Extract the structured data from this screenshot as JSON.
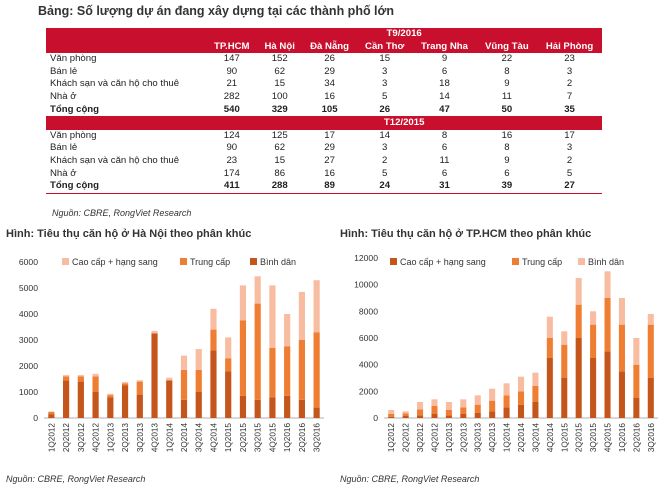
{
  "title": "Bảng: Số lượng dự án đang xây dựng tại các thành phố lớn",
  "table": {
    "columns": [
      "TP.HCM",
      "Hà Nội",
      "Đà Nẵng",
      "Cần Thơ",
      "Trang Nha",
      "Vũng Tàu",
      "Hải Phòng"
    ],
    "sections": [
      {
        "label": "T9/2016",
        "rows": [
          {
            "label": "Văn phòng",
            "values": [
              "147",
              "152",
              "26",
              "15",
              "9",
              "22",
              "23"
            ]
          },
          {
            "label": "Bán lẻ",
            "values": [
              "90",
              "62",
              "29",
              "3",
              "6",
              "8",
              "3"
            ]
          },
          {
            "label": "Khách sạn và căn hộ cho thuê",
            "values": [
              "21",
              "15",
              "34",
              "3",
              "18",
              "9",
              "2"
            ]
          },
          {
            "label": "Nhà ở",
            "values": [
              "282",
              "100",
              "16",
              "5",
              "14",
              "11",
              "7"
            ]
          }
        ],
        "total": {
          "label": "Tổng cộng",
          "values": [
            "540",
            "329",
            "105",
            "26",
            "47",
            "50",
            "35"
          ]
        }
      },
      {
        "label": "T12/2015",
        "rows": [
          {
            "label": "Văn phòng",
            "values": [
              "124",
              "125",
              "17",
              "14",
              "8",
              "16",
              "17"
            ]
          },
          {
            "label": "Bán lẻ",
            "values": [
              "90",
              "62",
              "29",
              "3",
              "6",
              "8",
              "3"
            ]
          },
          {
            "label": "Khách sạn và căn hộ cho thuê",
            "values": [
              "23",
              "15",
              "27",
              "2",
              "11",
              "9",
              "2"
            ]
          },
          {
            "label": "Nhà ở",
            "values": [
              "174",
              "86",
              "16",
              "5",
              "6",
              "6",
              "5"
            ]
          }
        ],
        "total": {
          "label": "Tổng cộng",
          "values": [
            "411",
            "288",
            "89",
            "24",
            "31",
            "39",
            "27"
          ]
        }
      }
    ],
    "source": "Nguồn: CBRE, RongViet Research"
  },
  "colors": {
    "accent": "#c8102e",
    "low": "#c4561c",
    "mid": "#f07e32",
    "high": "#f8bca0"
  },
  "chart_data": [
    {
      "type": "bar",
      "title": "Hình: Tiêu thụ căn hộ ở Hà Nội theo phân khúc",
      "source": "Nguồn: CBRE, RongViet Research",
      "stacked": true,
      "legend_position": "top",
      "ylim": [
        0,
        6000
      ],
      "yticks": [
        "0",
        "1000",
        "2000",
        "3000",
        "4000",
        "5000",
        "6000"
      ],
      "categories": [
        "1Q2012",
        "2Q2012",
        "3Q2012",
        "4Q2012",
        "1Q2013",
        "2Q2013",
        "3Q2013",
        "4Q2013",
        "1Q2014",
        "2Q2014",
        "3Q2014",
        "4Q2014",
        "1Q2015",
        "2Q2015",
        "3Q2015",
        "4Q2015",
        "1Q2016",
        "2Q2016",
        "3Q2016"
      ],
      "series": [
        {
          "name": "Bình dân",
          "color": "#c4561c",
          "values": [
            150,
            1450,
            1400,
            1000,
            800,
            1250,
            900,
            3250,
            1450,
            700,
            1000,
            2600,
            1800,
            850,
            700,
            800,
            850,
            700,
            400
          ]
        },
        {
          "name": "Trung cấp",
          "color": "#f07e32",
          "values": [
            80,
            150,
            200,
            600,
            80,
            80,
            500,
            0,
            0,
            1150,
            850,
            800,
            500,
            2900,
            3700,
            1900,
            1900,
            2300,
            2900
          ]
        },
        {
          "name": "Cao cấp + hạng sang",
          "color": "#f8bca0",
          "values": [
            20,
            50,
            50,
            100,
            50,
            50,
            50,
            100,
            100,
            550,
            800,
            800,
            800,
            1350,
            1050,
            2400,
            1250,
            1850,
            2000
          ]
        }
      ],
      "legend_order": [
        "Cao cấp + hạng sang",
        "Trung cấp",
        "Bình dân"
      ]
    },
    {
      "type": "bar",
      "title": "Hình: Tiêu thụ căn hộ ở TP.HCM theo phân khúc",
      "source": "Nguồn: CBRE, RongViet Research",
      "stacked": true,
      "legend_position": "top",
      "ylim": [
        0,
        12000
      ],
      "yticks": [
        "0",
        "2000",
        "4000",
        "6000",
        "8000",
        "10000",
        "12000"
      ],
      "categories": [
        "1Q2012",
        "2Q2012",
        "3Q2012",
        "4Q2012",
        "1Q2013",
        "2Q2013",
        "3Q2013",
        "4Q2013",
        "1Q2014",
        "2Q2014",
        "3Q2014",
        "4Q2014",
        "1Q2015",
        "2Q2015",
        "3Q2015",
        "4Q2015",
        "1Q2016",
        "2Q2016",
        "3Q2016"
      ],
      "series": [
        {
          "name": "Cao cấp + hạng sang",
          "color": "#c4561c",
          "values": [
            100,
            150,
            200,
            300,
            200,
            300,
            400,
            500,
            800,
            1000,
            1200,
            4500,
            3000,
            6000,
            4500,
            5000,
            3500,
            1500,
            3000
          ]
        },
        {
          "name": "Trung cấp",
          "color": "#f07e32",
          "values": [
            200,
            200,
            450,
            600,
            400,
            500,
            600,
            800,
            900,
            1000,
            1200,
            1500,
            2500,
            2500,
            2500,
            4000,
            3500,
            2500,
            4000
          ]
        },
        {
          "name": "Bình dân",
          "color": "#f8bca0",
          "values": [
            300,
            150,
            550,
            500,
            600,
            600,
            700,
            900,
            900,
            1100,
            1000,
            1600,
            1000,
            2000,
            1000,
            2000,
            2000,
            2000,
            800
          ]
        }
      ],
      "legend_order": [
        "Cao cấp + hạng sang",
        "Trung cấp",
        "Bình dân"
      ]
    }
  ]
}
